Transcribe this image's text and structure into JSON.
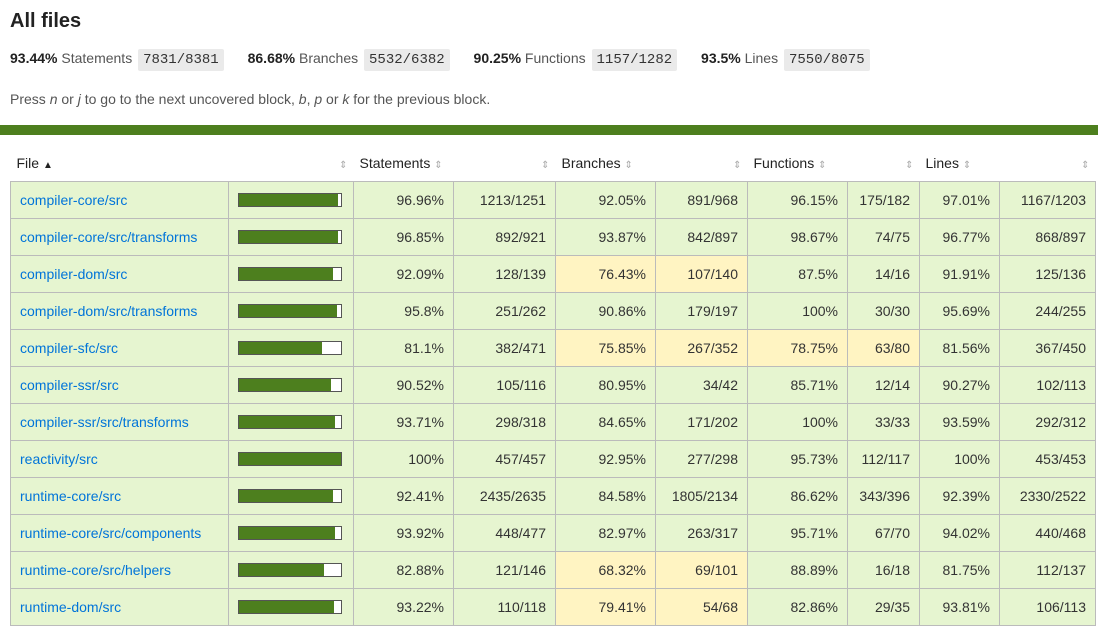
{
  "title": "All files",
  "summary": [
    {
      "pct": "93.44%",
      "label": "Statements",
      "frac": "7831/8381"
    },
    {
      "pct": "86.68%",
      "label": "Branches",
      "frac": "5532/6382"
    },
    {
      "pct": "90.25%",
      "label": "Functions",
      "frac": "1157/1282"
    },
    {
      "pct": "93.5%",
      "label": "Lines",
      "frac": "7550/8075"
    }
  ],
  "hint": {
    "press": "Press ",
    "n": "n",
    "or1": " or ",
    "j": "j",
    "mid": " to go to the next uncovered block, ",
    "b": "b",
    "comma": ", ",
    "p": "p",
    "or2": " or ",
    "k": "k",
    "end": " for the previous block."
  },
  "headers": {
    "file": "File",
    "statements": "Statements",
    "branches": "Branches",
    "functions": "Functions",
    "lines": "Lines",
    "sort_asc": "▲",
    "sort_both": "⇕"
  },
  "colors": {
    "high": "#e6f5d0",
    "medium": "#fff4c2",
    "bar": "#4d7f1e",
    "link": "#0074d9"
  },
  "rows": [
    {
      "file": "compiler-core/src",
      "fill": 0.9696,
      "s_pct": "96.96%",
      "s_frac": "1213/1251",
      "b_pct": "92.05%",
      "b_frac": "891/968",
      "f_pct": "96.15%",
      "f_frac": "175/182",
      "l_pct": "97.01%",
      "l_frac": "1167/1203",
      "b_med": false,
      "f_med": false
    },
    {
      "file": "compiler-core/src/transforms",
      "fill": 0.9685,
      "s_pct": "96.85%",
      "s_frac": "892/921",
      "b_pct": "93.87%",
      "b_frac": "842/897",
      "f_pct": "98.67%",
      "f_frac": "74/75",
      "l_pct": "96.77%",
      "l_frac": "868/897",
      "b_med": false,
      "f_med": false
    },
    {
      "file": "compiler-dom/src",
      "fill": 0.9209,
      "s_pct": "92.09%",
      "s_frac": "128/139",
      "b_pct": "76.43%",
      "b_frac": "107/140",
      "f_pct": "87.5%",
      "f_frac": "14/16",
      "l_pct": "91.91%",
      "l_frac": "125/136",
      "b_med": true,
      "f_med": false
    },
    {
      "file": "compiler-dom/src/transforms",
      "fill": 0.958,
      "s_pct": "95.8%",
      "s_frac": "251/262",
      "b_pct": "90.86%",
      "b_frac": "179/197",
      "f_pct": "100%",
      "f_frac": "30/30",
      "l_pct": "95.69%",
      "l_frac": "244/255",
      "b_med": false,
      "f_med": false
    },
    {
      "file": "compiler-sfc/src",
      "fill": 0.811,
      "s_pct": "81.1%",
      "s_frac": "382/471",
      "b_pct": "75.85%",
      "b_frac": "267/352",
      "f_pct": "78.75%",
      "f_frac": "63/80",
      "l_pct": "81.56%",
      "l_frac": "367/450",
      "b_med": true,
      "f_med": true
    },
    {
      "file": "compiler-ssr/src",
      "fill": 0.9052,
      "s_pct": "90.52%",
      "s_frac": "105/116",
      "b_pct": "80.95%",
      "b_frac": "34/42",
      "f_pct": "85.71%",
      "f_frac": "12/14",
      "l_pct": "90.27%",
      "l_frac": "102/113",
      "b_med": false,
      "f_med": false
    },
    {
      "file": "compiler-ssr/src/transforms",
      "fill": 0.9371,
      "s_pct": "93.71%",
      "s_frac": "298/318",
      "b_pct": "84.65%",
      "b_frac": "171/202",
      "f_pct": "100%",
      "f_frac": "33/33",
      "l_pct": "93.59%",
      "l_frac": "292/312",
      "b_med": false,
      "f_med": false
    },
    {
      "file": "reactivity/src",
      "fill": 1.0,
      "s_pct": "100%",
      "s_frac": "457/457",
      "b_pct": "92.95%",
      "b_frac": "277/298",
      "f_pct": "95.73%",
      "f_frac": "112/117",
      "l_pct": "100%",
      "l_frac": "453/453",
      "b_med": false,
      "f_med": false
    },
    {
      "file": "runtime-core/src",
      "fill": 0.9241,
      "s_pct": "92.41%",
      "s_frac": "2435/2635",
      "b_pct": "84.58%",
      "b_frac": "1805/2134",
      "f_pct": "86.62%",
      "f_frac": "343/396",
      "l_pct": "92.39%",
      "l_frac": "2330/2522",
      "b_med": false,
      "f_med": false
    },
    {
      "file": "runtime-core/src/components",
      "fill": 0.9392,
      "s_pct": "93.92%",
      "s_frac": "448/477",
      "b_pct": "82.97%",
      "b_frac": "263/317",
      "f_pct": "95.71%",
      "f_frac": "67/70",
      "l_pct": "94.02%",
      "l_frac": "440/468",
      "b_med": false,
      "f_med": false
    },
    {
      "file": "runtime-core/src/helpers",
      "fill": 0.8288,
      "s_pct": "82.88%",
      "s_frac": "121/146",
      "b_pct": "68.32%",
      "b_frac": "69/101",
      "f_pct": "88.89%",
      "f_frac": "16/18",
      "l_pct": "81.75%",
      "l_frac": "112/137",
      "b_med": true,
      "f_med": false
    },
    {
      "file": "runtime-dom/src",
      "fill": 0.9322,
      "s_pct": "93.22%",
      "s_frac": "110/118",
      "b_pct": "79.41%",
      "b_frac": "54/68",
      "f_pct": "82.86%",
      "f_frac": "29/35",
      "l_pct": "93.81%",
      "l_frac": "106/113",
      "b_med": true,
      "f_med": false
    }
  ]
}
